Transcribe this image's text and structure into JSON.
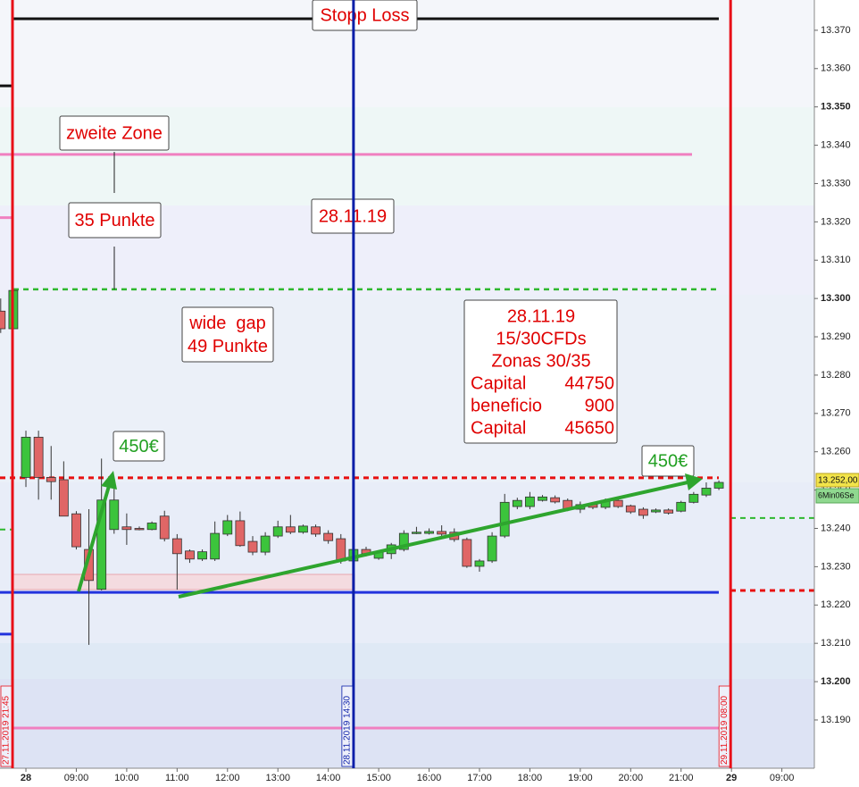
{
  "chart_data": {
    "type": "candlestick",
    "categories": [
      null,
      null,
      "28",
      null,
      null,
      null,
      "09:00",
      null,
      null,
      null,
      "10:00",
      null,
      null,
      null,
      "11:00",
      null,
      null,
      null,
      "12:00",
      null,
      null,
      null,
      "13:00",
      null,
      null,
      null,
      "14:00",
      null,
      null,
      null,
      "15:00",
      null,
      null,
      null,
      "16:00",
      null,
      null,
      null,
      "17:00",
      null,
      null,
      null,
      "18:00",
      null,
      null,
      null,
      "19:00",
      null,
      null,
      null,
      "20:00",
      null,
      null,
      null,
      "21:00",
      null,
      null,
      null,
      "29",
      null,
      null,
      null,
      "09:00"
    ],
    "open": [
      13.2967,
      13.2921,
      13.2533,
      13.2638,
      13.2533,
      13.2527,
      13.2438,
      13.2345,
      13.2241,
      13.2397,
      13.2404,
      13.24,
      13.2397,
      13.2432,
      13.2373,
      13.2341,
      13.232,
      13.232,
      13.2385,
      13.242,
      13.2366,
      13.2338,
      13.238,
      13.2404,
      13.239,
      13.2404,
      13.2387,
      13.2373,
      13.2315,
      13.2345,
      13.2322,
      13.2334,
      13.2345,
      13.2387,
      13.2387,
      13.2392,
      13.239,
      13.2371,
      13.2301,
      13.2315,
      13.238,
      13.2457,
      13.2457,
      13.2473,
      13.248,
      13.2473,
      13.245,
      13.2462,
      13.2455,
      13.2473,
      13.2459,
      13.245,
      13.2443,
      13.2448,
      13.2445,
      13.2468,
      13.2487,
      13.2505,
      null,
      null,
      null,
      null,
      null
    ],
    "high": [
      13.3,
      13.3025,
      13.2655,
      13.2655,
      13.2615,
      13.2575,
      13.2445,
      13.245,
      13.2582,
      13.2521,
      13.2439,
      13.2405,
      13.2418,
      13.2446,
      13.2385,
      13.2345,
      13.2345,
      13.2418,
      13.2435,
      13.2444,
      13.238,
      13.239,
      13.242,
      13.2435,
      13.241,
      13.241,
      13.2395,
      13.2385,
      13.235,
      13.2352,
      13.2342,
      13.2362,
      13.2395,
      13.2404,
      13.24,
      13.2408,
      13.24,
      13.2376,
      13.232,
      13.239,
      13.249,
      13.248,
      13.2495,
      13.2487,
      13.2486,
      13.2478,
      13.247,
      13.2468,
      13.2478,
      13.248,
      13.2462,
      13.2455,
      13.2452,
      13.2452,
      13.2472,
      13.2495,
      13.252,
      13.2525,
      null,
      null,
      null,
      null,
      null
    ],
    "low": [
      13.291,
      13.291,
      13.2508,
      13.2475,
      13.2475,
      13.2432,
      13.2345,
      13.2096,
      13.2238,
      13.2386,
      13.2357,
      13.2395,
      13.2395,
      13.2366,
      13.224,
      13.231,
      13.2315,
      13.2315,
      13.238,
      13.2352,
      13.233,
      13.233,
      13.2375,
      13.2385,
      13.2386,
      13.2378,
      13.236,
      13.2308,
      13.231,
      13.2327,
      13.2318,
      13.232,
      13.234,
      13.2385,
      13.2384,
      13.238,
      13.2365,
      13.2297,
      13.2287,
      13.231,
      13.2375,
      13.245,
      13.245,
      13.247,
      13.2465,
      13.2445,
      13.244,
      13.245,
      13.245,
      13.2453,
      13.2438,
      13.2425,
      13.244,
      13.2436,
      13.2442,
      13.2465,
      13.2482,
      13.25,
      null,
      null,
      null,
      null,
      null
    ],
    "close": [
      13.2921,
      13.3021,
      13.2638,
      13.2533,
      13.2522,
      13.2432,
      13.2352,
      13.2264,
      13.2474,
      13.2474,
      13.2397,
      13.2397,
      13.2414,
      13.2373,
      13.2334,
      13.232,
      13.2339,
      13.2387,
      13.242,
      13.2355,
      13.2338,
      13.238,
      13.2404,
      13.239,
      13.2406,
      13.2385,
      13.2368,
      13.2315,
      13.2345,
      13.2334,
      13.2338,
      13.2357,
      13.2387,
      13.239,
      13.2392,
      13.2385,
      13.2371,
      13.2301,
      13.2315,
      13.238,
      13.2468,
      13.2473,
      13.2482,
      13.2482,
      13.2469,
      13.245,
      13.2462,
      13.2455,
      13.2473,
      13.2457,
      13.2443,
      13.2434,
      13.2448,
      13.244,
      13.2468,
      13.2489,
      13.2505,
      13.252,
      null,
      null,
      null,
      null,
      null
    ],
    "up_color": "#3cc43c",
    "down_color": "#e06666",
    "ylim": [
      13.1774,
      13.3779
    ],
    "yticks": [
      {
        "value": 13.19,
        "label": "13.190"
      },
      {
        "value": 13.2,
        "label": "13.200"
      },
      {
        "value": 13.21,
        "label": "13.210"
      },
      {
        "value": 13.22,
        "label": "13.220"
      },
      {
        "value": 13.23,
        "label": "13.230"
      },
      {
        "value": 13.24,
        "label": "13.240"
      },
      {
        "value": 13.25,
        "label": "13.250"
      },
      {
        "value": 13.26,
        "label": "13.260"
      },
      {
        "value": 13.27,
        "label": "13.270"
      },
      {
        "value": 13.28,
        "label": "13.280"
      },
      {
        "value": 13.29,
        "label": "13.290"
      },
      {
        "value": 13.3,
        "label": "13.300"
      },
      {
        "value": 13.31,
        "label": "13.310"
      },
      {
        "value": 13.32,
        "label": "13.320"
      },
      {
        "value": 13.33,
        "label": "13.330"
      },
      {
        "value": 13.34,
        "label": "13.340"
      },
      {
        "value": 13.35,
        "label": "13.350"
      },
      {
        "value": 13.36,
        "label": "13.360"
      },
      {
        "value": 13.37,
        "label": "13.370"
      }
    ],
    "grid": false,
    "levels": [
      {
        "value": 13.373,
        "color": "#111111",
        "style": "solid"
      },
      {
        "value": 13.3555,
        "color": "#111111",
        "style": "solid"
      },
      {
        "value": 13.3376,
        "color": "#f080c0",
        "style": "solid"
      },
      {
        "value": 13.3211,
        "color": "#f080c0",
        "style": "solid"
      },
      {
        "value": 13.3024,
        "color": "#2eb82e",
        "style": "dotted"
      },
      {
        "value": 13.2532,
        "color": "#e81010",
        "style": "dotted"
      },
      {
        "value": 13.2427,
        "color": "#2eb82e",
        "style": "dotted"
      },
      {
        "value": 13.2397,
        "color": "#2eb82e",
        "style": "dotted"
      },
      {
        "value": 13.2238,
        "color": "#e81010",
        "style": "dotted"
      },
      {
        "value": 13.2233,
        "color": "#2233dd",
        "style": "solid"
      },
      {
        "value": 13.2124,
        "color": "#2233dd",
        "style": "solid"
      },
      {
        "value": 13.1879,
        "color": "#f080c0",
        "style": "solid"
      }
    ],
    "vlines": [
      {
        "label": "27.11.2019 21:45",
        "color": "#e81018"
      },
      {
        "label": "28.11.2019 14:30",
        "color": "#0a1ea8"
      },
      {
        "label": "29.11.2019 08:00",
        "color": "#e81018"
      }
    ],
    "annotations": [
      {
        "lines": [
          "Stopp Loss"
        ],
        "color": "#e00000"
      },
      {
        "lines": [
          "zweite Zone"
        ],
        "color": "#e00000"
      },
      {
        "lines": [
          "35 Punkte"
        ],
        "color": "#e00000"
      },
      {
        "lines": [
          "28.11.19"
        ],
        "color": "#e00000"
      },
      {
        "lines": [
          "wide  gap",
          "49 Punkte"
        ],
        "color": "#e00000"
      },
      {
        "lines": [
          "450€"
        ],
        "color": "#22a022"
      },
      {
        "lines": [
          "450€"
        ],
        "color": "#22a022"
      }
    ],
    "summary": {
      "lines": [
        "28.11.19",
        "15/30CFDs",
        "Zonas 30/35"
      ],
      "rows": [
        [
          "Capital",
          "44750"
        ],
        [
          "beneficio",
          "900"
        ],
        [
          "Capital",
          "45650"
        ]
      ],
      "color": "#e00000"
    },
    "last_price": "13.252,00",
    "timer": "6Min06Se"
  }
}
